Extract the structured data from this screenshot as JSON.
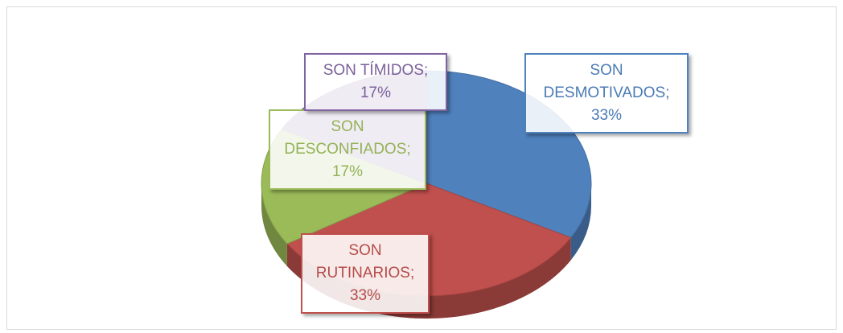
{
  "chart_data": {
    "type": "pie",
    "categories": [
      "SON DESMOTIVADOS;",
      "SON RUTINARIOS;",
      "SON DESCONFIADOS;",
      "SON TÍMIDOS;"
    ],
    "values": [
      33,
      33,
      17,
      17
    ],
    "value_labels": [
      "33%",
      "33%",
      "17%",
      "17%"
    ],
    "colors": [
      "#4f81bd",
      "#c0504d",
      "#9bbb59",
      "#8064a2"
    ]
  }
}
